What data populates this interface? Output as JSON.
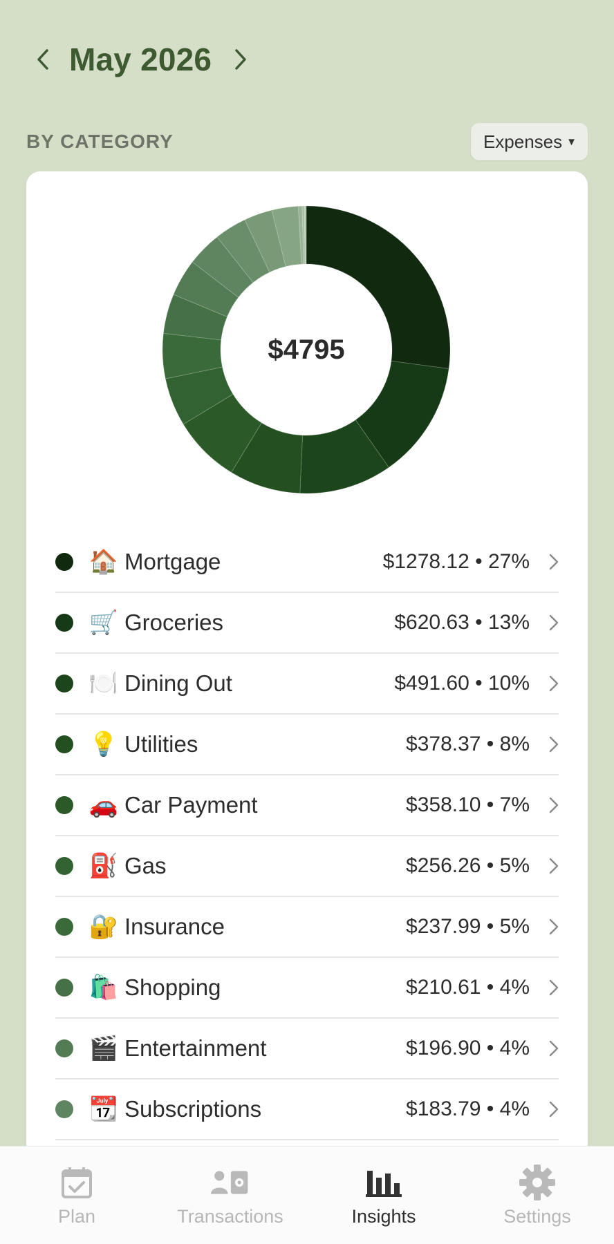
{
  "header": {
    "month_label": "May 2026",
    "prev_icon": "chevron-left-icon",
    "next_icon": "chevron-right-icon"
  },
  "section": {
    "label": "BY CATEGORY",
    "filter": {
      "selected": "Expenses",
      "icon": "caret-down-icon"
    }
  },
  "summary": {
    "total": "$4795"
  },
  "categories": [
    {
      "name": "Mortgage",
      "emoji": "🏠",
      "amount": "$1278.12 • 27%",
      "value": 1278.12,
      "color": "#10290f"
    },
    {
      "name": "Groceries",
      "emoji": "🛒",
      "amount": "$620.63 • 13%",
      "value": 620.63,
      "color": "#173a16"
    },
    {
      "name": "Dining Out",
      "emoji": "🍽️",
      "amount": "$491.60 • 10%",
      "value": 491.6,
      "color": "#1d451b"
    },
    {
      "name": "Utilities",
      "emoji": "💡",
      "amount": "$378.37 • 8%",
      "value": 378.37,
      "color": "#234f21"
    },
    {
      "name": "Car Payment",
      "emoji": "🚗",
      "amount": "$358.10 • 7%",
      "value": 358.1,
      "color": "#2b5a28"
    },
    {
      "name": "Gas",
      "emoji": "⛽",
      "amount": "$256.26 • 5%",
      "value": 256.26,
      "color": "#336232"
    },
    {
      "name": "Insurance",
      "emoji": "🔐",
      "amount": "$237.99 • 5%",
      "value": 237.99,
      "color": "#3b6a3a"
    },
    {
      "name": "Shopping",
      "emoji": "🛍️",
      "amount": "$210.61 • 4%",
      "value": 210.61,
      "color": "#467147"
    },
    {
      "name": "Entertainment",
      "emoji": "🎬",
      "amount": "$196.90 • 4%",
      "value": 196.9,
      "color": "#537b54"
    },
    {
      "name": "Subscriptions",
      "emoji": "📆",
      "amount": "$183.79 • 4%",
      "value": 183.79,
      "color": "#5e8560"
    }
  ],
  "extra_slices": [
    {
      "value": 170,
      "color": "#6a8e6a"
    },
    {
      "value": 150,
      "color": "#789a77"
    },
    {
      "value": 140,
      "color": "#86a584"
    },
    {
      "value": 20,
      "color": "#99b396"
    },
    {
      "value": 12,
      "color": "#a8bea4"
    },
    {
      "value": 10,
      "color": "#b8cab4"
    }
  ],
  "tabs": [
    {
      "label": "Plan",
      "icon": "calendar-check-icon",
      "active": false
    },
    {
      "label": "Transactions",
      "icon": "transactions-icon",
      "active": false
    },
    {
      "label": "Insights",
      "icon": "bar-chart-icon",
      "active": true
    },
    {
      "label": "Settings",
      "icon": "gear-icon",
      "active": false
    }
  ]
}
